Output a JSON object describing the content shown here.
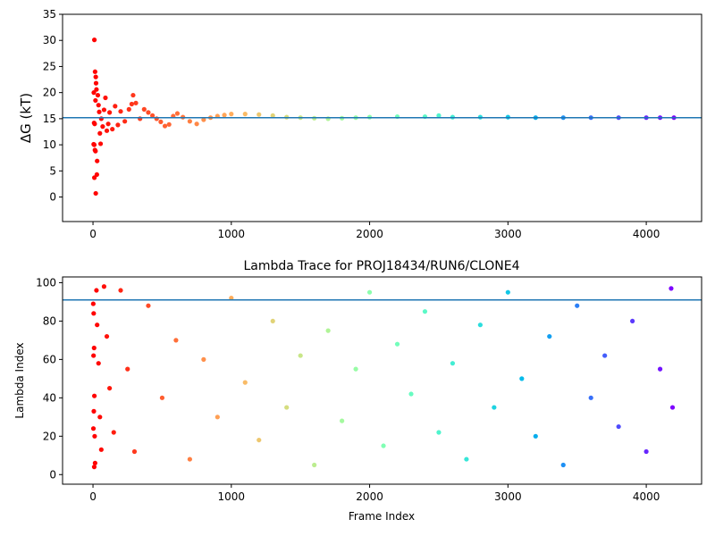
{
  "chart_data": [
    {
      "type": "scatter",
      "title": "",
      "xlabel": "",
      "ylabel": "ΔG (kT)",
      "xlim": [
        -220,
        4400
      ],
      "ylim": [
        -4.7,
        35
      ],
      "xticks": [
        0,
        1000,
        2000,
        3000,
        4000
      ],
      "yticks": [
        0,
        5,
        10,
        15,
        20,
        25,
        30,
        35
      ],
      "grid": false,
      "colormap": "rainbow (red at early frames, violet at late frames)",
      "hline": {
        "y": 15.2,
        "color": "#1f77b4"
      },
      "series": [
        {
          "points": [
            [
              10,
              30.1
            ],
            [
              15,
              24.0
            ],
            [
              20,
              23.0
            ],
            [
              22,
              21.8
            ],
            [
              25,
              20.6
            ],
            [
              6,
              20.0
            ],
            [
              18,
              18.5
            ],
            [
              8,
              14.2
            ],
            [
              12,
              14.0
            ],
            [
              5,
              10.1
            ],
            [
              9,
              10.0
            ],
            [
              14,
              9.0
            ],
            [
              18,
              8.8
            ],
            [
              30,
              6.9
            ],
            [
              10,
              3.7
            ],
            [
              28,
              4.3
            ],
            [
              20,
              0.7
            ],
            [
              35,
              19.5
            ],
            [
              40,
              17.6
            ],
            [
              45,
              16.3
            ],
            [
              50,
              12.2
            ],
            [
              55,
              10.2
            ],
            [
              60,
              15.0
            ],
            [
              70,
              13.5
            ],
            [
              80,
              16.7
            ],
            [
              90,
              19.0
            ],
            [
              100,
              12.7
            ],
            [
              110,
              14.0
            ],
            [
              120,
              16.2
            ],
            [
              140,
              13.0
            ],
            [
              160,
              17.4
            ],
            [
              180,
              13.8
            ],
            [
              200,
              16.4
            ],
            [
              230,
              14.5
            ],
            [
              260,
              16.8
            ],
            [
              280,
              17.8
            ],
            [
              290,
              19.5
            ],
            [
              310,
              18.0
            ],
            [
              340,
              15.0
            ],
            [
              370,
              16.8
            ],
            [
              400,
              16.2
            ],
            [
              430,
              15.6
            ],
            [
              460,
              15.0
            ],
            [
              490,
              14.4
            ],
            [
              520,
              13.6
            ],
            [
              550,
              13.9
            ],
            [
              580,
              15.5
            ],
            [
              610,
              16.0
            ],
            [
              650,
              15.3
            ],
            [
              700,
              14.5
            ],
            [
              750,
              14.0
            ],
            [
              800,
              14.8
            ],
            [
              850,
              15.2
            ],
            [
              900,
              15.5
            ],
            [
              950,
              15.7
            ],
            [
              1000,
              15.9
            ],
            [
              1100,
              15.9
            ],
            [
              1200,
              15.8
            ],
            [
              1300,
              15.6
            ],
            [
              1400,
              15.3
            ],
            [
              1500,
              15.2
            ],
            [
              1600,
              15.1
            ],
            [
              1700,
              15.0
            ],
            [
              1800,
              15.1
            ],
            [
              1900,
              15.2
            ],
            [
              2000,
              15.3
            ],
            [
              2200,
              15.4
            ],
            [
              2400,
              15.4
            ],
            [
              2500,
              15.6
            ],
            [
              2600,
              15.3
            ],
            [
              2800,
              15.3
            ],
            [
              3000,
              15.3
            ],
            [
              3200,
              15.2
            ],
            [
              3400,
              15.2
            ],
            [
              3600,
              15.2
            ],
            [
              3800,
              15.2
            ],
            [
              4000,
              15.2
            ],
            [
              4100,
              15.2
            ],
            [
              4200,
              15.2
            ]
          ]
        }
      ]
    },
    {
      "type": "scatter",
      "title": "Lambda Trace for PROJ18434/RUN6/CLONE4",
      "xlabel": "Frame Index",
      "ylabel": "Lambda Index",
      "xlim": [
        -220,
        4400
      ],
      "ylim": [
        -5,
        103
      ],
      "xticks": [
        0,
        1000,
        2000,
        3000,
        4000
      ],
      "yticks": [
        0,
        20,
        40,
        60,
        80,
        100
      ],
      "grid": false,
      "colormap": "rainbow (red at early frames, violet at late frames)",
      "hline": {
        "y": 91,
        "color": "#1f77b4"
      },
      "series": [
        {
          "points": [
            [
              2,
              89
            ],
            [
              5,
              84
            ],
            [
              8,
              66
            ],
            [
              4,
              62
            ],
            [
              10,
              41
            ],
            [
              6,
              33
            ],
            [
              3,
              24
            ],
            [
              12,
              20
            ],
            [
              15,
              6
            ],
            [
              9,
              4
            ],
            [
              25,
              96
            ],
            [
              30,
              78
            ],
            [
              40,
              58
            ],
            [
              50,
              30
            ],
            [
              60,
              13
            ],
            [
              80,
              98
            ],
            [
              100,
              72
            ],
            [
              120,
              45
            ],
            [
              150,
              22
            ],
            [
              200,
              96
            ],
            [
              250,
              55
            ],
            [
              300,
              12
            ],
            [
              400,
              88
            ],
            [
              500,
              40
            ],
            [
              600,
              70
            ],
            [
              700,
              8
            ],
            [
              800,
              60
            ],
            [
              900,
              30
            ],
            [
              1000,
              92
            ],
            [
              1100,
              48
            ],
            [
              1200,
              18
            ],
            [
              1300,
              80
            ],
            [
              1400,
              35
            ],
            [
              1500,
              62
            ],
            [
              1600,
              5
            ],
            [
              1700,
              75
            ],
            [
              1800,
              28
            ],
            [
              1900,
              55
            ],
            [
              2000,
              95
            ],
            [
              2100,
              15
            ],
            [
              2200,
              68
            ],
            [
              2300,
              42
            ],
            [
              2400,
              85
            ],
            [
              2500,
              22
            ],
            [
              2600,
              58
            ],
            [
              2700,
              8
            ],
            [
              2800,
              78
            ],
            [
              2900,
              35
            ],
            [
              3000,
              95
            ],
            [
              3100,
              50
            ],
            [
              3200,
              20
            ],
            [
              3300,
              72
            ],
            [
              3400,
              5
            ],
            [
              3500,
              88
            ],
            [
              3600,
              40
            ],
            [
              3700,
              62
            ],
            [
              3800,
              25
            ],
            [
              3900,
              80
            ],
            [
              4000,
              12
            ],
            [
              4100,
              55
            ],
            [
              4180,
              97
            ],
            [
              4190,
              35
            ]
          ]
        }
      ]
    }
  ]
}
